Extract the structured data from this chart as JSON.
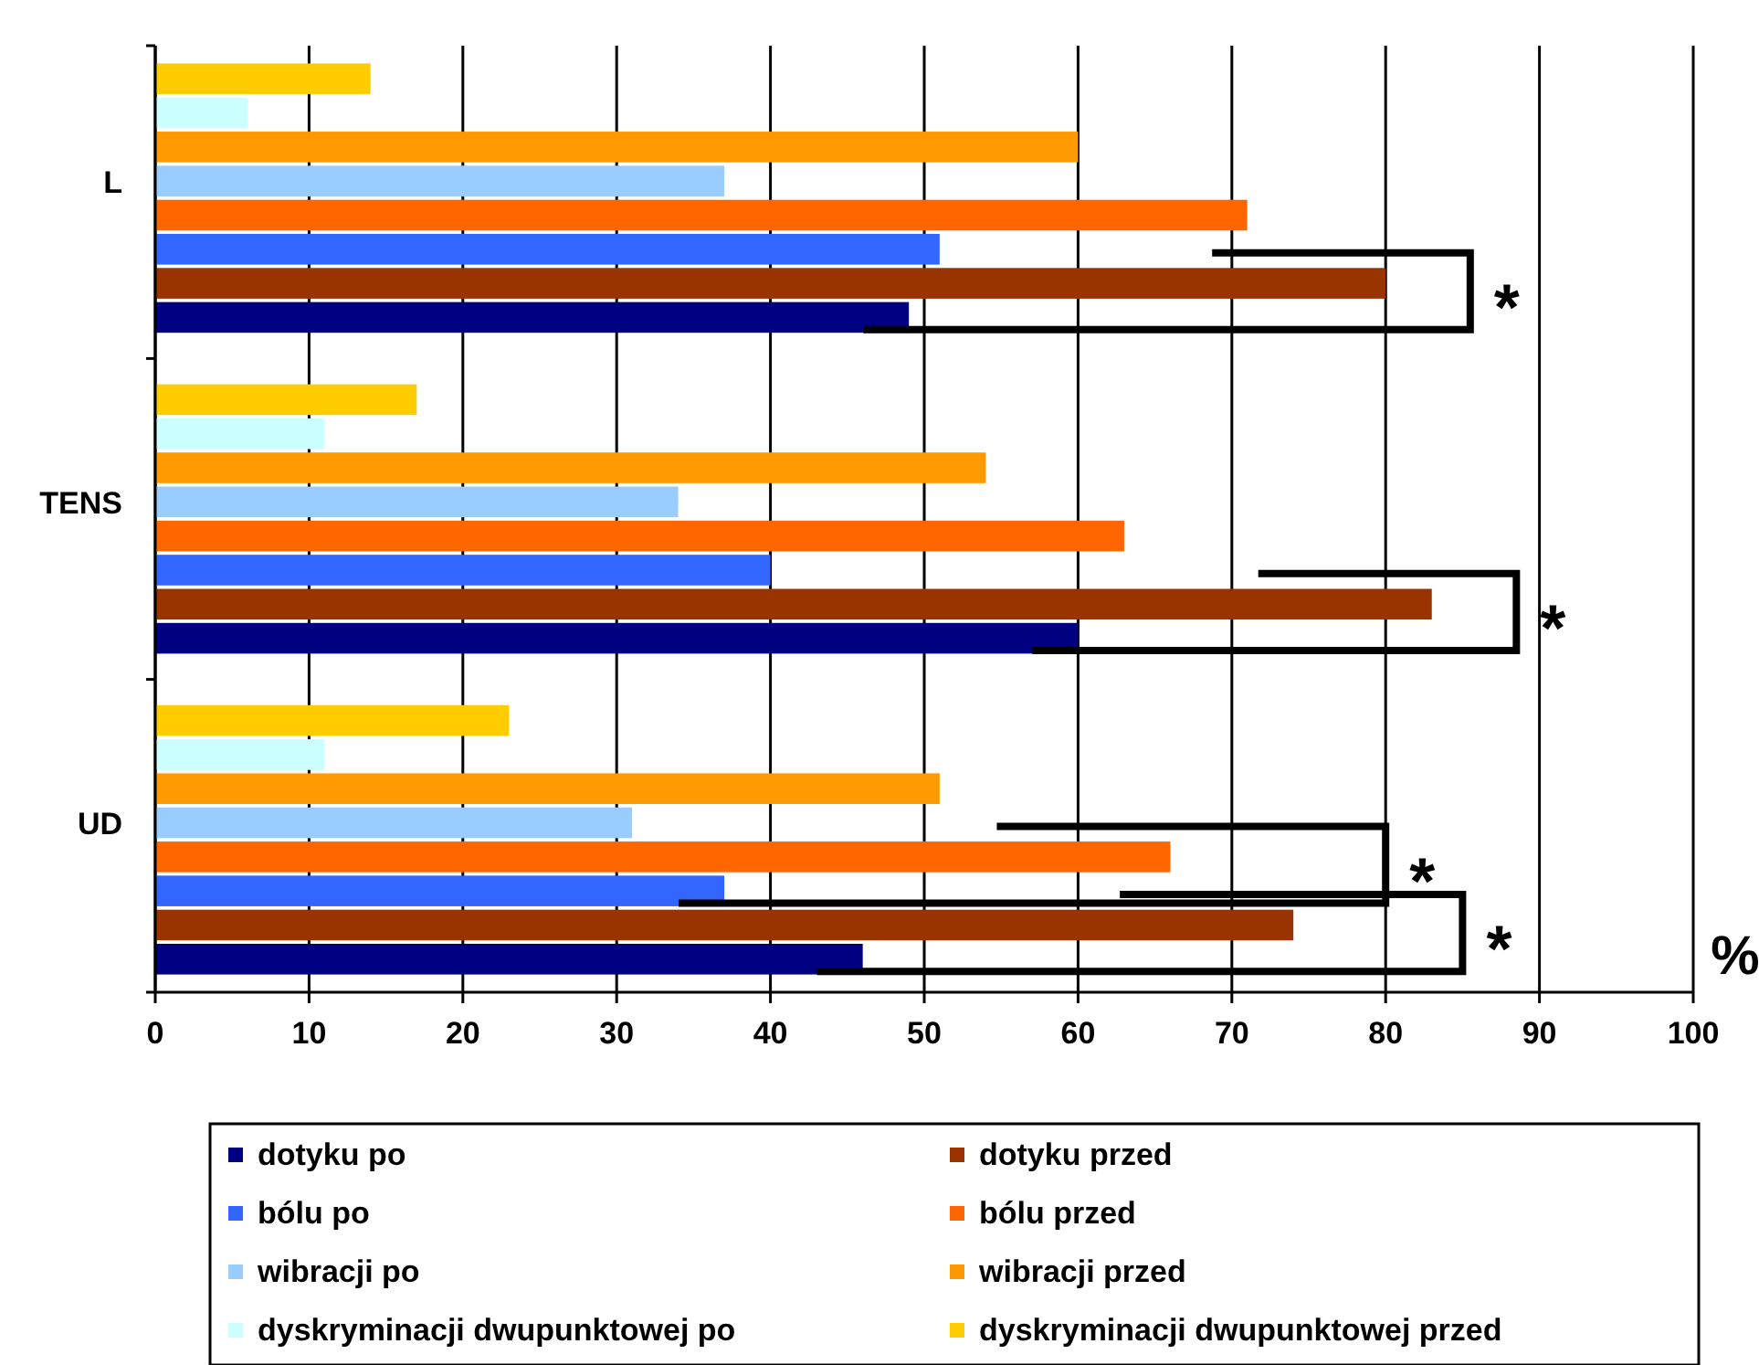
{
  "chart_data": {
    "type": "bar",
    "orientation": "horizontal",
    "xlabel": "%",
    "categories": [
      "L",
      "TENS",
      "UD"
    ],
    "series": [
      {
        "name": "dotyku po",
        "color": "#000080",
        "values": [
          49,
          60,
          46
        ]
      },
      {
        "name": "dotyku przed",
        "color": "#993300",
        "values": [
          80,
          83,
          74
        ]
      },
      {
        "name": "bólu po",
        "color": "#3366ff",
        "values": [
          51,
          40,
          37
        ]
      },
      {
        "name": "bólu przed",
        "color": "#ff6600",
        "values": [
          71,
          63,
          66
        ]
      },
      {
        "name": "wibracji po",
        "color": "#99ccff",
        "values": [
          37,
          34,
          31
        ]
      },
      {
        "name": "wibracji przed",
        "color": "#ff9900",
        "values": [
          60,
          54,
          51
        ]
      },
      {
        "name": "dyskryminacji dwupunktowej po",
        "color": "#ccffff",
        "values": [
          6,
          11,
          11
        ]
      },
      {
        "name": "dyskryminacji dwupunktowej przed",
        "color": "#ffcc00",
        "values": [
          14,
          17,
          23
        ]
      }
    ],
    "xlim": [
      0,
      100
    ],
    "xticks": [
      0,
      10,
      20,
      30,
      40,
      50,
      60,
      70,
      80,
      90,
      100
    ],
    "grid": "x",
    "legend": "bottom",
    "annotations": [
      "*",
      "*",
      "*",
      "*"
    ]
  }
}
